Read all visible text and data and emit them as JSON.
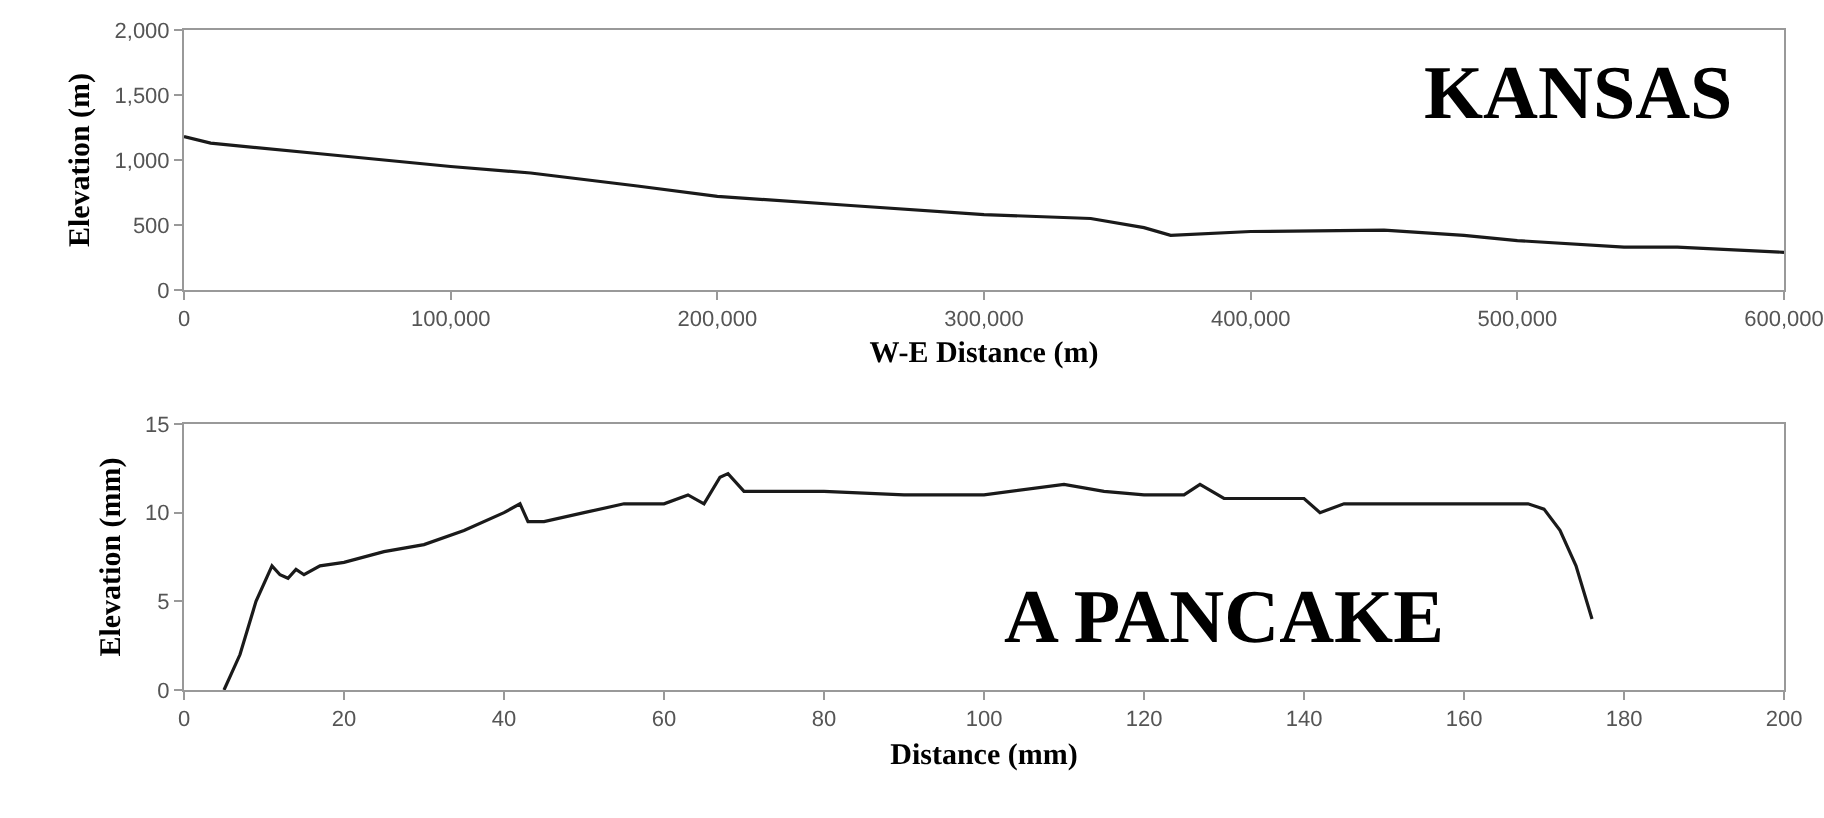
{
  "chart_data": [
    {
      "type": "line",
      "xlabel": "W-E Distance (m)",
      "ylabel": "Elevation (m)",
      "annotations": [
        "KANSAS"
      ],
      "x": [
        0,
        10000,
        50000,
        100000,
        130000,
        170000,
        200000,
        250000,
        300000,
        340000,
        360000,
        370000,
        400000,
        450000,
        480000,
        500000,
        540000,
        560000,
        600000
      ],
      "series": [
        {
          "color": "#1a1a1a",
          "values": [
            1180,
            1130,
            1050,
            950,
            900,
            800,
            720,
            650,
            580,
            550,
            480,
            420,
            450,
            460,
            420,
            380,
            330,
            330,
            290
          ]
        }
      ],
      "xlim": [
        0,
        600000
      ],
      "xticks": [
        0,
        {
          "value": 100000,
          "label": "100,000"
        },
        {
          "value": 200000,
          "label": "200,000"
        },
        {
          "value": 300000,
          "label": "300,000"
        },
        {
          "value": 400000,
          "label": "400,000"
        },
        {
          "value": 500000,
          "label": "500,000"
        },
        {
          "value": 600000,
          "label": "600,000"
        }
      ],
      "ylim": [
        0,
        2000
      ],
      "yticks": [
        0,
        500,
        {
          "value": 1000,
          "label": "1,000"
        },
        {
          "value": 1500,
          "label": "1,500"
        },
        {
          "value": 2000,
          "label": "2,000"
        }
      ],
      "grid": false,
      "legend": false
    },
    {
      "type": "line",
      "xlabel": "Distance (mm)",
      "ylabel": "Elevation (mm)",
      "annotations": [
        "A PANCAKE"
      ],
      "x": [
        5,
        7,
        9,
        11,
        12,
        13,
        14,
        15,
        17,
        20,
        25,
        30,
        35,
        40,
        42,
        43,
        45,
        50,
        55,
        60,
        63,
        65,
        67,
        68,
        70,
        80,
        90,
        100,
        110,
        115,
        120,
        125,
        127,
        130,
        140,
        142,
        145,
        150,
        160,
        168,
        170,
        172,
        174,
        176
      ],
      "series": [
        {
          "color": "#1a1a1a",
          "values": [
            0,
            2,
            5,
            7,
            6.5,
            6.3,
            6.8,
            6.5,
            7,
            7.2,
            7.8,
            8.2,
            9,
            10,
            10.5,
            9.5,
            9.5,
            10,
            10.5,
            10.5,
            11,
            10.5,
            12,
            12.2,
            11.2,
            11.2,
            11,
            11,
            11.6,
            11.2,
            11,
            11,
            11.6,
            10.8,
            10.8,
            10,
            10.5,
            10.5,
            10.5,
            10.5,
            10.2,
            9,
            7,
            4
          ]
        }
      ],
      "xlim": [
        0,
        200
      ],
      "xticks": [
        0,
        20,
        40,
        60,
        80,
        100,
        120,
        140,
        160,
        180,
        200
      ],
      "ylim": [
        0,
        15
      ],
      "yticks": [
        0,
        5,
        10,
        15
      ],
      "grid": false,
      "legend": false
    }
  ]
}
